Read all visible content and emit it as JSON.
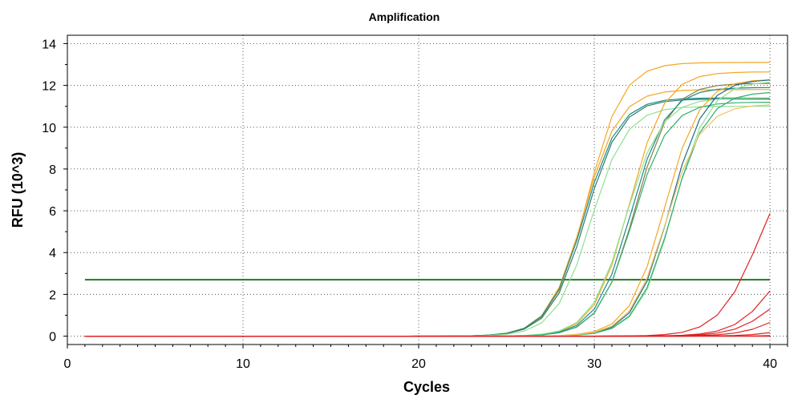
{
  "chart_data": {
    "type": "line",
    "title": "Amplification",
    "xlabel": "Cycles",
    "ylabel": "RFU (10^3)",
    "xlim": [
      0,
      41
    ],
    "ylim": [
      -0.4,
      14.4
    ],
    "xticks": [
      0,
      10,
      20,
      30,
      40
    ],
    "yticks": [
      0,
      2,
      4,
      6,
      8,
      10,
      12,
      14
    ],
    "grid": "dotted",
    "legend": "none",
    "threshold": {
      "value": 2.7,
      "x_range": [
        1,
        40
      ],
      "color": "#1f7a1f"
    },
    "series": [
      {
        "color": "#f5a623",
        "plateau": 13.1,
        "midpoint": 29.6,
        "slope": 1.0
      },
      {
        "color": "#f5a623",
        "plateau": 11.8,
        "midpoint": 29.4,
        "slope": 1.0
      },
      {
        "color": "#1a8a8a",
        "plateau": 11.4,
        "midpoint": 29.4,
        "slope": 1.0
      },
      {
        "color": "#2e7d6b",
        "plateau": 11.35,
        "midpoint": 29.5,
        "slope": 1.0
      },
      {
        "color": "#90e090",
        "plateau": 11.0,
        "midpoint": 29.8,
        "slope": 1.0
      },
      {
        "color": "#f5a623",
        "plateau": 12.65,
        "midpoint": 32.0,
        "slope": 1.0
      },
      {
        "color": "#8a7a40",
        "plateau": 12.1,
        "midpoint": 32.3,
        "slope": 1.0
      },
      {
        "color": "#1a8a8a",
        "plateau": 11.9,
        "midpoint": 32.1,
        "slope": 1.0
      },
      {
        "color": "#90e090",
        "plateau": 11.4,
        "midpoint": 31.8,
        "slope": 1.0
      },
      {
        "color": "#30b070",
        "plateau": 11.2,
        "midpoint": 32.2,
        "slope": 1.0
      },
      {
        "color": "#f5a623",
        "plateau": 12.3,
        "midpoint": 34.0,
        "slope": 1.0
      },
      {
        "color": "#1a6a8a",
        "plateau": 12.3,
        "midpoint": 34.3,
        "slope": 1.0
      },
      {
        "color": "#90e090",
        "plateau": 12.2,
        "midpoint": 34.5,
        "slope": 1.0
      },
      {
        "color": "#30b070",
        "plateau": 11.7,
        "midpoint": 34.4,
        "slope": 1.0
      },
      {
        "color": "#f5c060",
        "plateau": 11.1,
        "midpoint": 34.1,
        "slope": 1.0
      },
      {
        "color": "#e02020",
        "plateau": 9.0,
        "midpoint": 39.3,
        "slope": 0.9
      },
      {
        "color": "#e02020",
        "plateau": 5.0,
        "midpoint": 40.3,
        "slope": 0.9
      },
      {
        "color": "#e02020",
        "plateau": 3.0,
        "midpoint": 40.3,
        "slope": 0.9
      },
      {
        "color": "#e02020",
        "plateau": 2.0,
        "midpoint": 40.8,
        "slope": 0.9
      },
      {
        "color": "#e02020",
        "plateau": 1.2,
        "midpoint": 42.0,
        "slope": 0.9
      },
      {
        "color": "#e02020",
        "plateau": 1.0,
        "midpoint": 44.0,
        "slope": 0.9
      },
      {
        "color": "#e02020",
        "plateau": 0.0,
        "midpoint": 50.0,
        "slope": 1.0
      }
    ]
  }
}
